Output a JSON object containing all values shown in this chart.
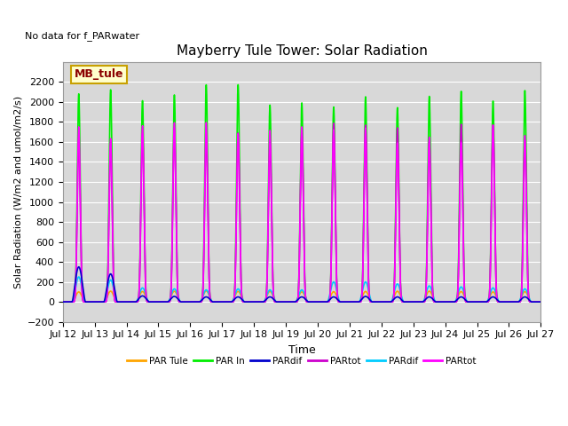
{
  "title": "Mayberry Tule Tower: Solar Radiation",
  "top_note": "No data for f_PARwater",
  "ylabel": "Solar Radiation (W/m2 and umol/m2/s)",
  "xlabel": "Time",
  "ylim": [
    -200,
    2400
  ],
  "yticks": [
    -200,
    0,
    200,
    400,
    600,
    800,
    1000,
    1200,
    1400,
    1600,
    1800,
    2000,
    2200
  ],
  "bg_color": "#d8d8d8",
  "legend_box_label": "MB_tule",
  "legend_box_edge_color": "#c8a000",
  "legend_box_text_color": "#8b0000",
  "legend_box_face_color": "#ffffcc",
  "n_days": 15,
  "xstart": 12,
  "xend": 27,
  "series": [
    {
      "label": "PAR Tule",
      "color": "#ffa500",
      "lw": 1.2,
      "peak": 110
    },
    {
      "label": "PAR In",
      "color": "#00ee00",
      "lw": 1.2,
      "peak": 2200
    },
    {
      "label": "PARdif",
      "color": "#0000cc",
      "lw": 1.2,
      "peak": 60
    },
    {
      "label": "PARtot",
      "color": "#cc00cc",
      "lw": 1.2,
      "peak": 1800
    },
    {
      "label": "PARdif",
      "color": "#00ccff",
      "lw": 1.2,
      "peak": 150
    },
    {
      "label": "PARtot",
      "color": "#ff00ff",
      "lw": 1.2,
      "peak": 1800
    }
  ],
  "title_fontsize": 11,
  "axis_fontsize": 8,
  "ylabel_fontsize": 8
}
